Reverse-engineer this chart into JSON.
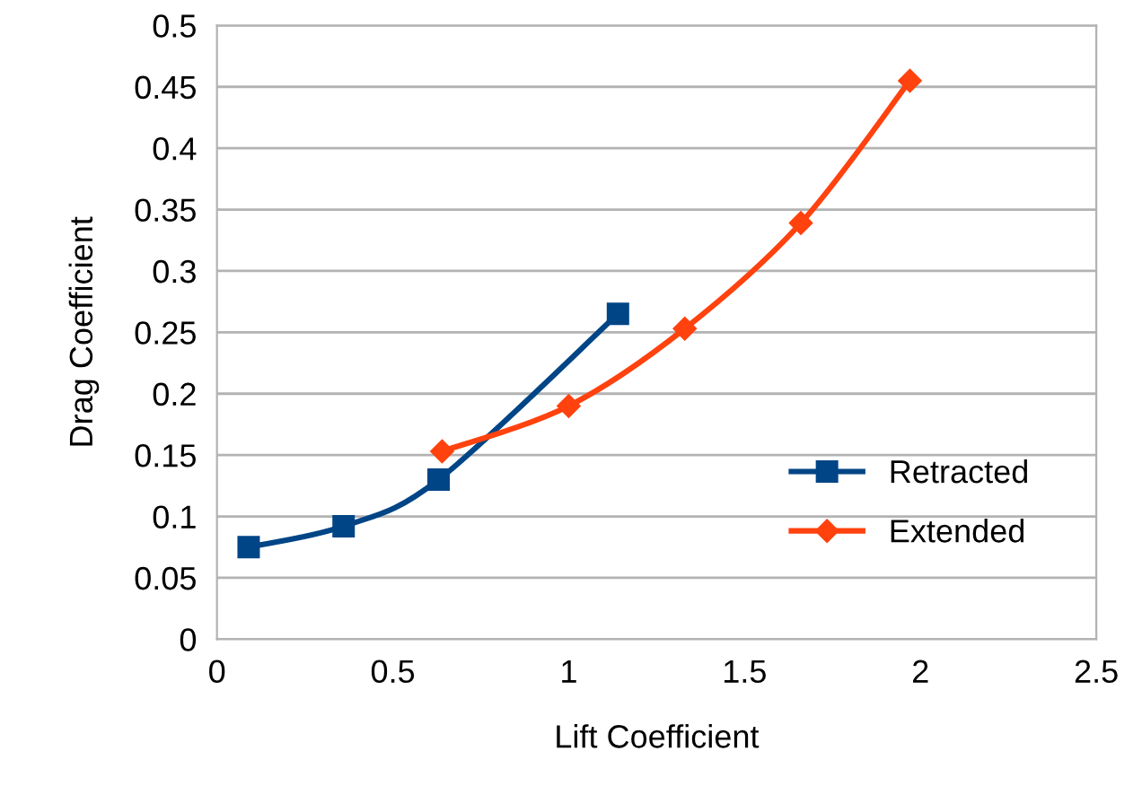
{
  "chart_data": {
    "type": "line",
    "xlabel": "Lift Coefficient",
    "ylabel": "Drag Coefficient",
    "xlim": [
      0,
      2.5
    ],
    "xticks": [
      0,
      0.5,
      1,
      1.5,
      2,
      2.5
    ],
    "ylim": [
      0,
      0.5
    ],
    "yticks": [
      0,
      0.05,
      0.1,
      0.15,
      0.2,
      0.25,
      0.3,
      0.35,
      0.4,
      0.45,
      0.5
    ],
    "grid": "y",
    "legend": "right",
    "series": [
      {
        "name": "Retracted",
        "color": "#004586",
        "marker": "square",
        "x": [
          0.09,
          0.36,
          0.63,
          1.14
        ],
        "values": [
          0.075,
          0.092,
          0.13,
          0.265
        ]
      },
      {
        "name": "Extended",
        "color": "#ff420e",
        "marker": "diamond",
        "x": [
          0.64,
          1.0,
          1.33,
          1.66,
          1.97
        ],
        "values": [
          0.153,
          0.19,
          0.253,
          0.339,
          0.455
        ]
      }
    ]
  }
}
